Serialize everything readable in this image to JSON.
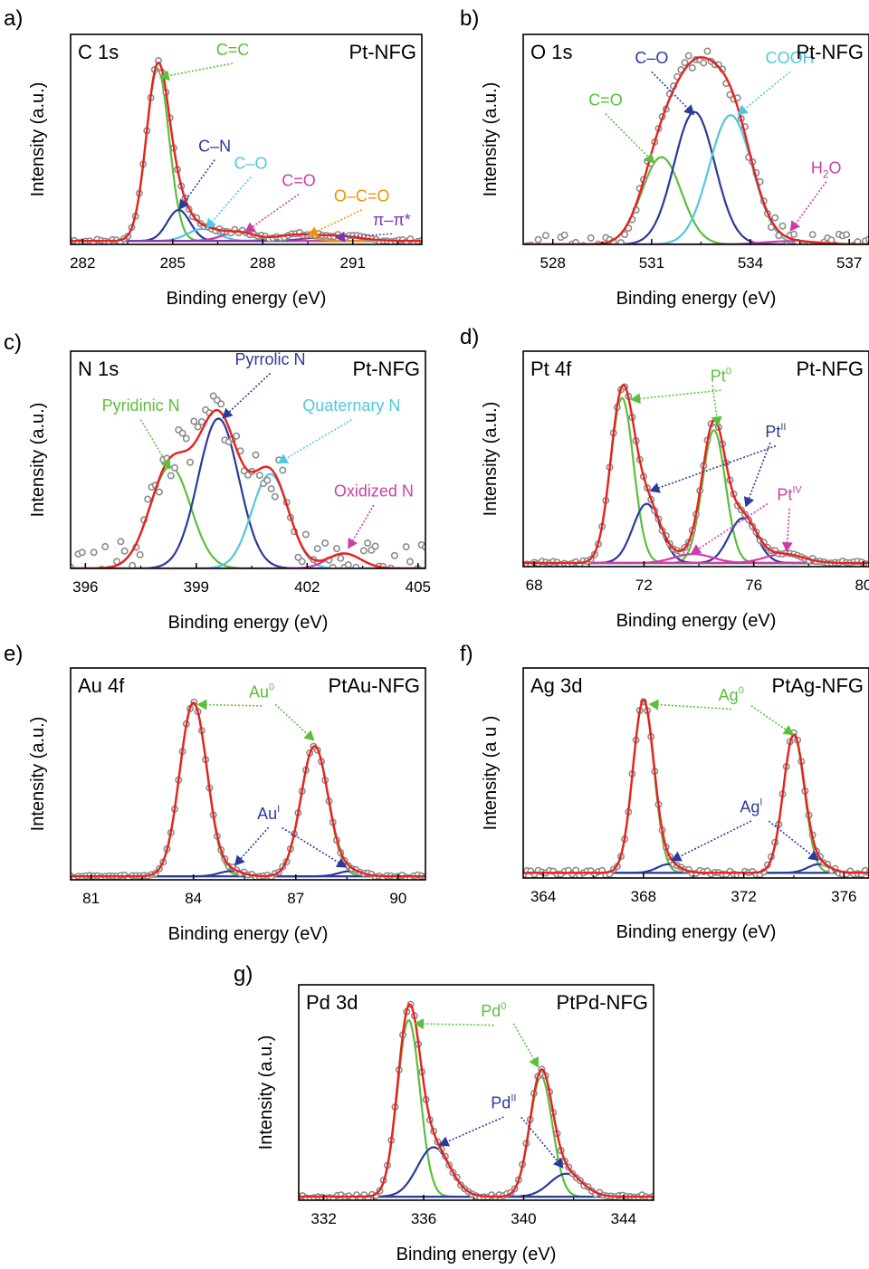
{
  "chart_data": [
    {
      "type": "line",
      "panel_label": "a)",
      "spectrum": "C 1s",
      "sample": "Pt-NFG",
      "xlabel": "Binding energy (eV)",
      "ylabel": "Intensity (a.u.)",
      "xlim": [
        281.6,
        293.3
      ],
      "xticks": [
        282,
        285,
        288,
        291
      ],
      "ylim": [
        0,
        1.22
      ],
      "baseline": 0.02,
      "noise": 0.012,
      "components": [
        {
          "name": "C=C",
          "color": "#5bbf3a",
          "center": 284.5,
          "height": 1.0,
          "width": 0.38
        },
        {
          "name": "C–N",
          "color": "#2b3a9b",
          "center": 285.2,
          "height": 0.18,
          "width": 0.38
        },
        {
          "name": "C–O",
          "color": "#4fc8e0",
          "center": 286.0,
          "height": 0.07,
          "width": 0.5
        },
        {
          "name": "C=O",
          "color": "#cc3ea7",
          "center": 287.2,
          "height": 0.05,
          "width": 0.55
        },
        {
          "name": "O–C=O",
          "color": "#f39200",
          "center": 289.0,
          "height": 0.03,
          "width": 0.6
        },
        {
          "name": "π–π*",
          "color": "#7a35b5",
          "center": 290.4,
          "height": 0.03,
          "width": 0.8
        }
      ],
      "annotations": [
        {
          "text": "C=C",
          "color": "#5bbf3a",
          "x": 287.0,
          "y": 1.1,
          "tx": 284.55,
          "ty": 0.97
        },
        {
          "text": "C–N",
          "color": "#2b3a9b",
          "x": 286.4,
          "y": 0.54,
          "tx": 285.2,
          "ty": 0.2
        },
        {
          "text": "C–O",
          "color": "#4fc8e0",
          "x": 287.6,
          "y": 0.44,
          "tx": 286.1,
          "ty": 0.09
        },
        {
          "text": "C=O",
          "color": "#cc3ea7",
          "x": 289.2,
          "y": 0.34,
          "tx": 287.4,
          "ty": 0.07
        },
        {
          "text": "O–C=O",
          "color": "#f39200",
          "x": 291.3,
          "y": 0.25,
          "tx": 289.5,
          "ty": 0.05
        },
        {
          "text": "π–π*",
          "color": "#7a35b5",
          "x": 292.3,
          "y": 0.11,
          "tx": 290.4,
          "ty": 0.04
        }
      ]
    },
    {
      "type": "line",
      "panel_label": "b)",
      "spectrum": "O 1s",
      "sample": "Pt-NFG",
      "xlabel": "Binding energy (eV)",
      "ylabel": "Intensity (a.u.)",
      "xlim": [
        527.1,
        537.6
      ],
      "xticks": [
        528,
        531,
        534,
        537
      ],
      "ylim": [
        0,
        1.3
      ],
      "baseline": 0.0,
      "noise": 0.06,
      "components": [
        {
          "name": "C=O",
          "color": "#5bbf3a",
          "center": 531.3,
          "height": 0.54,
          "width": 0.6
        },
        {
          "name": "C–O",
          "color": "#2b3a9b",
          "center": 532.3,
          "height": 0.82,
          "width": 0.62
        },
        {
          "name": "COOH",
          "color": "#4fc8e0",
          "center": 533.4,
          "height": 0.8,
          "width": 0.65
        },
        {
          "name": "H2O",
          "color": "#cc3ea7",
          "center": 535.2,
          "height": 0.02,
          "width": 0.8
        }
      ],
      "annotations": [
        {
          "text": "C=O",
          "color": "#5bbf3a",
          "x": 529.6,
          "y": 0.86,
          "tx": 531.1,
          "ty": 0.5
        },
        {
          "text": "C–O",
          "color": "#2b3a9b",
          "x": 531.0,
          "y": 1.12,
          "tx": 532.3,
          "ty": 0.8
        },
        {
          "text": "COOH",
          "color": "#4fc8e0",
          "x": 535.2,
          "y": 1.12,
          "tx": 533.6,
          "ty": 0.8
        },
        {
          "text": "H",
          "sub": "2",
          "tail": "O",
          "color": "#cc3ea7",
          "x": 536.3,
          "y": 0.44,
          "tx": 535.2,
          "ty": 0.08
        }
      ]
    },
    {
      "type": "line",
      "panel_label": "c)",
      "spectrum": "N 1s",
      "sample": "Pt-NFG",
      "xlabel": "Binding energy (eV)",
      "ylabel": "Intensity (a.u.)",
      "xlim": [
        395.6,
        405.2
      ],
      "xticks": [
        396,
        399,
        402,
        405
      ],
      "ylim": [
        0,
        1.45
      ],
      "baseline": 0.0,
      "noise": 0.16,
      "components": [
        {
          "name": "Pyridinic N",
          "color": "#5bbf3a",
          "center": 398.3,
          "height": 0.68,
          "width": 0.55
        },
        {
          "name": "Pyrrolic N",
          "color": "#2b3a9b",
          "center": 399.6,
          "height": 1.0,
          "width": 0.55
        },
        {
          "name": "Quaternary N",
          "color": "#4fc8e0",
          "center": 401.0,
          "height": 0.63,
          "width": 0.5
        },
        {
          "name": "Oxidized N",
          "color": "#cc3ea7",
          "center": 403.0,
          "height": 0.1,
          "width": 0.45
        }
      ],
      "annotations": [
        {
          "text": "Pyridinic N",
          "color": "#5bbf3a",
          "x": 397.5,
          "y": 1.05,
          "tx": 398.3,
          "ty": 0.66
        },
        {
          "text": "Pyrrolic N",
          "color": "#2b3a9b",
          "x": 401.0,
          "y": 1.36,
          "tx": 399.7,
          "ty": 1.0
        },
        {
          "text": "Quaternary N",
          "color": "#4fc8e0",
          "x": 403.2,
          "y": 1.05,
          "tx": 401.2,
          "ty": 0.7
        },
        {
          "text": "Oxidized N",
          "color": "#cc3ea7",
          "x": 403.8,
          "y": 0.48,
          "tx": 403.1,
          "ty": 0.13
        }
      ]
    },
    {
      "type": "line",
      "panel_label": "d)",
      "spectrum": "Pt 4f",
      "sample": "Pt-NFG",
      "xlabel": "Binding energy (eV)",
      "ylabel": "Intensity (a.u.)",
      "xlim": [
        67.6,
        80.2
      ],
      "xticks": [
        68,
        72,
        76,
        80
      ],
      "ylim": [
        0,
        1.2
      ],
      "baseline": 0.02,
      "noise": 0.01,
      "components": [
        {
          "name": "Pt0",
          "color": "#5bbf3a",
          "center": 71.2,
          "height": 0.92,
          "width": 0.42
        },
        {
          "name": "Pt0",
          "color": "#5bbf3a",
          "center": 74.55,
          "height": 0.74,
          "width": 0.42
        },
        {
          "name": "PtII",
          "color": "#2b3a9b",
          "center": 72.1,
          "height": 0.33,
          "width": 0.5
        },
        {
          "name": "PtII",
          "color": "#2b3a9b",
          "center": 75.6,
          "height": 0.25,
          "width": 0.5
        },
        {
          "name": "PtIV",
          "color": "#cc3ea7",
          "center": 73.8,
          "height": 0.05,
          "width": 0.7
        },
        {
          "name": "PtIV",
          "color": "#cc3ea7",
          "center": 77.1,
          "height": 0.05,
          "width": 0.7
        }
      ],
      "annotations": [
        {
          "text": "Pt",
          "sup": "0",
          "color": "#5bbf3a",
          "x": 74.8,
          "y": 1.03,
          "tx": 71.5,
          "ty": 0.93
        },
        {
          "text": "Pt",
          "sup": "II",
          "color": "#2b3a9b",
          "x": 76.8,
          "y": 0.72,
          "tx": 72.2,
          "ty": 0.42
        },
        {
          "text": "Pt",
          "sup": "IV",
          "color": "#cc3ea7",
          "x": 77.3,
          "y": 0.37,
          "tx": 77.2,
          "ty": 0.08
        }
      ],
      "extra_arrows": [
        {
          "color": "#5bbf3a",
          "from_x": 74.5,
          "from_y": 1.01,
          "to_x": 74.7,
          "to_y": 0.78
        },
        {
          "color": "#2b3a9b",
          "from_x": 76.6,
          "from_y": 0.69,
          "to_x": 75.7,
          "to_y": 0.33
        },
        {
          "color": "#cc3ea7",
          "from_x": 76.5,
          "from_y": 0.35,
          "to_x": 73.7,
          "to_y": 0.07
        }
      ]
    },
    {
      "type": "line",
      "panel_label": "e)",
      "spectrum": "Au 4f",
      "sample": "PtAu-NFG",
      "xlabel": "Binding energy (eV)",
      "ylabel": "Intensity (a.u.)",
      "xlim": [
        80.4,
        90.8
      ],
      "xticks": [
        81,
        84,
        87,
        90
      ],
      "ylim": [
        0,
        1.22
      ],
      "baseline": 0.02,
      "noise": 0.008,
      "components": [
        {
          "name": "Au0",
          "color": "#5bbf3a",
          "center": 84.0,
          "height": 1.0,
          "width": 0.4
        },
        {
          "name": "Au0",
          "color": "#5bbf3a",
          "center": 87.55,
          "height": 0.75,
          "width": 0.4
        },
        {
          "name": "AuI",
          "color": "#2b3a9b",
          "center": 85.1,
          "height": 0.03,
          "width": 0.35
        },
        {
          "name": "AuI",
          "color": "#2b3a9b",
          "center": 88.6,
          "height": 0.03,
          "width": 0.35
        }
      ],
      "annotations": [
        {
          "text": "Au",
          "sup": "0",
          "color": "#5bbf3a",
          "x": 86.0,
          "y": 1.05,
          "tx": 84.1,
          "ty": 1.01
        },
        {
          "text": "Au",
          "sup": "I",
          "color": "#2b3a9b",
          "x": 86.2,
          "y": 0.35,
          "tx": 85.2,
          "ty": 0.08
        }
      ],
      "extra_arrows": [
        {
          "color": "#5bbf3a",
          "from_x": 86.4,
          "from_y": 1.01,
          "to_x": 87.55,
          "to_y": 0.8
        },
        {
          "color": "#2b3a9b",
          "from_x": 86.6,
          "from_y": 0.3,
          "to_x": 88.5,
          "to_y": 0.07
        }
      ]
    },
    {
      "type": "line",
      "panel_label": "f)",
      "spectrum": "Ag 3d",
      "sample": "PtAg-NFG",
      "xlabel": "Binding energy (eV)",
      "ylabel": "Intensity (a u )",
      "xlim": [
        363.2,
        377.0
      ],
      "xticks": [
        364,
        368,
        372,
        376
      ],
      "ylim": [
        0,
        1.22
      ],
      "baseline": 0.03,
      "noise": 0.015,
      "components": [
        {
          "name": "Ag0",
          "color": "#5bbf3a",
          "center": 368.0,
          "height": 1.0,
          "width": 0.42
        },
        {
          "name": "Ag0",
          "color": "#5bbf3a",
          "center": 374.0,
          "height": 0.8,
          "width": 0.42
        },
        {
          "name": "AgI",
          "color": "#2b3a9b",
          "center": 369.0,
          "height": 0.05,
          "width": 0.45
        },
        {
          "name": "AgI",
          "color": "#2b3a9b",
          "center": 375.0,
          "height": 0.05,
          "width": 0.45
        }
      ],
      "annotations": [
        {
          "text": "Ag",
          "sup": "0",
          "color": "#5bbf3a",
          "x": 371.5,
          "y": 1.03,
          "tx": 368.2,
          "ty": 1.01
        },
        {
          "text": "Ag",
          "sup": "I",
          "color": "#2b3a9b",
          "x": 372.3,
          "y": 0.38,
          "tx": 369.1,
          "ty": 0.1
        }
      ],
      "extra_arrows": [
        {
          "color": "#5bbf3a",
          "from_x": 372.3,
          "from_y": 1.0,
          "to_x": 374.0,
          "to_y": 0.83
        },
        {
          "color": "#2b3a9b",
          "from_x": 373.0,
          "from_y": 0.33,
          "to_x": 375.0,
          "to_y": 0.1
        }
      ]
    },
    {
      "type": "line",
      "panel_label": "g)",
      "spectrum": "Pd 3d",
      "sample": "PtPd-NFG",
      "xlabel": "Binding energy (eV)",
      "ylabel": "Intensity (a.u.)",
      "xlim": [
        331.0,
        345.2
      ],
      "xticks": [
        332,
        336,
        340,
        344
      ],
      "ylim": [
        0,
        1.22
      ],
      "baseline": 0.02,
      "noise": 0.01,
      "components": [
        {
          "name": "Pd0",
          "color": "#5bbf3a",
          "center": 335.4,
          "height": 1.0,
          "width": 0.45
        },
        {
          "name": "Pd0",
          "color": "#5bbf3a",
          "center": 340.7,
          "height": 0.68,
          "width": 0.45
        },
        {
          "name": "PdII",
          "color": "#2b3a9b",
          "center": 336.4,
          "height": 0.28,
          "width": 0.65
        },
        {
          "name": "PdII",
          "color": "#2b3a9b",
          "center": 341.7,
          "height": 0.13,
          "width": 0.65
        }
      ],
      "annotations": [
        {
          "text": "Pd",
          "sup": "0",
          "color": "#5bbf3a",
          "x": 338.8,
          "y": 1.04,
          "tx": 335.6,
          "ty": 1.0
        },
        {
          "text": "Pd",
          "sup": "II",
          "color": "#2b3a9b",
          "x": 339.2,
          "y": 0.52,
          "tx": 336.6,
          "ty": 0.31
        }
      ],
      "extra_arrows": [
        {
          "color": "#5bbf3a",
          "from_x": 339.6,
          "from_y": 1.0,
          "to_x": 340.6,
          "to_y": 0.75
        },
        {
          "color": "#2b3a9b",
          "from_x": 339.9,
          "from_y": 0.47,
          "to_x": 341.6,
          "to_y": 0.18
        }
      ]
    }
  ],
  "styles": {
    "envelope_color": "#e8211d",
    "background_line_color": "#888888",
    "point_stroke_color": "#8c8c8c",
    "axis_color": "#000000"
  }
}
